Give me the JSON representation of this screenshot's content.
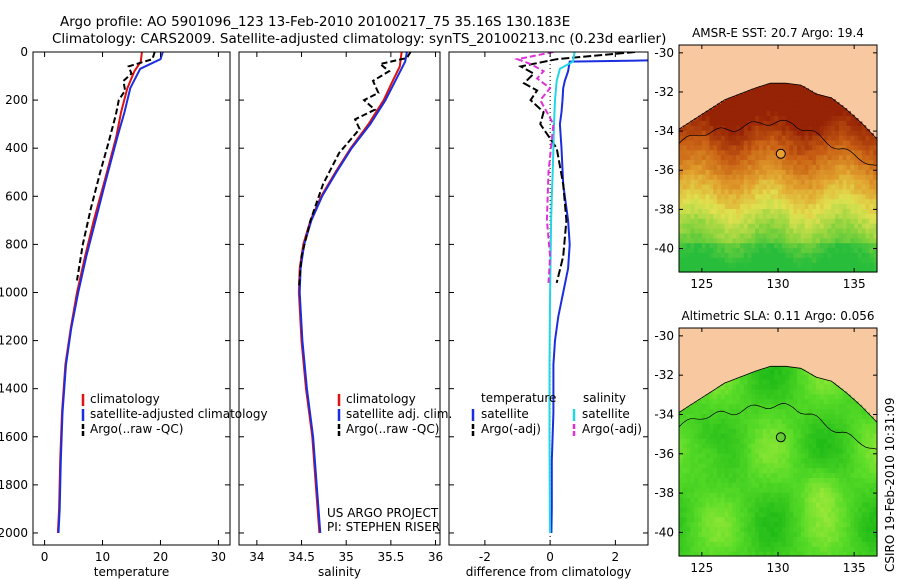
{
  "title_line1": "Argo profile: AO 5901096_123 13-Feb-2010 20100217_75 35.16S 130.183E",
  "title_line2": "Climatology: CARS2009. Satellite-adjusted climatology: synTS_20100213.nc (0.23d earlier)",
  "side_label": "CSIRO 19-Feb-2010 10:31:09",
  "colors": {
    "climatology": "#e01010",
    "satellite": "#1a2ee0",
    "argo": "#000000",
    "satellite_diff_sal": "#22d6e8",
    "argo_diff_sal": "#e030d8",
    "land": "#f8c8a0"
  },
  "chart_data": [
    {
      "id": "temperature",
      "type": "line",
      "xlabel": "temperature",
      "xlim": [
        -2,
        32
      ],
      "ylim": [
        0,
        2050
      ],
      "y_inverted": true,
      "xticks": [
        0,
        10,
        20,
        30
      ],
      "yticks": [
        0,
        200,
        400,
        600,
        800,
        1000,
        1200,
        1400,
        1600,
        1800,
        2000
      ],
      "legend": [
        "climatology",
        "satellite-adjusted climatology",
        "Argo(..raw -QC)"
      ],
      "series": [
        {
          "name": "climatology",
          "color": "climatology",
          "dash": "",
          "x": [
            16.8,
            16.6,
            15.5,
            14.3,
            13.2,
            12.4,
            11.3,
            10.2,
            8.5,
            7.0,
            5.6,
            4.5,
            3.6,
            3.0,
            2.7,
            2.5,
            2.3
          ],
          "y": [
            0,
            40,
            80,
            150,
            250,
            350,
            450,
            550,
            700,
            850,
            1000,
            1150,
            1300,
            1500,
            1700,
            1900,
            2000
          ]
        },
        {
          "name": "satellite-adjusted climatology",
          "color": "satellite",
          "dash": "",
          "x": [
            20.4,
            20.0,
            16.5,
            14.8,
            13.8,
            12.6,
            11.5,
            10.4,
            8.8,
            7.2,
            5.8,
            4.6,
            3.7,
            3.1,
            2.8,
            2.6,
            2.4
          ],
          "y": [
            0,
            30,
            70,
            150,
            250,
            350,
            450,
            550,
            700,
            850,
            1000,
            1150,
            1300,
            1500,
            1700,
            1900,
            2000
          ]
        },
        {
          "name": "Argo(..raw -QC)",
          "color": "argo",
          "dash": "6,3",
          "x": [
            19.0,
            18.6,
            14.5,
            15.0,
            13.6,
            13.9,
            12.8,
            12.3,
            11.0,
            9.6,
            8.0,
            6.6,
            5.6
          ],
          "y": [
            0,
            30,
            60,
            90,
            120,
            160,
            200,
            260,
            380,
            500,
            650,
            800,
            950
          ]
        }
      ]
    },
    {
      "id": "salinity",
      "type": "line",
      "xlabel": "salinity",
      "xlim": [
        33.8,
        36.05
      ],
      "ylim": [
        0,
        2050
      ],
      "y_inverted": true,
      "xticks": [
        34,
        34.5,
        35,
        35.5,
        36
      ],
      "legend": [
        "climatology",
        "satellite adj. clim.",
        "Argo(..raw -QC)"
      ],
      "annotation": [
        "US ARGO PROJECT",
        "PI: STEPHEN RISER"
      ],
      "series": [
        {
          "name": "climatology",
          "color": "climatology",
          "dash": "",
          "x": [
            35.62,
            35.6,
            35.52,
            35.42,
            35.25,
            35.05,
            34.88,
            34.72,
            34.6,
            34.52,
            34.48,
            34.47,
            34.5,
            34.55,
            34.62,
            34.66,
            34.7
          ],
          "y": [
            0,
            60,
            120,
            200,
            300,
            400,
            500,
            600,
            700,
            800,
            900,
            1000,
            1200,
            1400,
            1600,
            1800,
            2000
          ]
        },
        {
          "name": "satellite adj. clim.",
          "color": "satellite",
          "dash": "",
          "x": [
            35.68,
            35.66,
            35.55,
            35.44,
            35.27,
            35.06,
            34.89,
            34.73,
            34.61,
            34.53,
            34.49,
            34.48,
            34.51,
            34.56,
            34.63,
            34.67,
            34.71
          ],
          "y": [
            0,
            40,
            120,
            200,
            300,
            400,
            500,
            600,
            700,
            800,
            900,
            1000,
            1200,
            1400,
            1600,
            1800,
            2000
          ]
        },
        {
          "name": "Argo(..raw -QC)",
          "color": "argo",
          "dash": "6,3",
          "x": [
            35.72,
            35.68,
            35.38,
            35.48,
            35.3,
            35.36,
            35.2,
            35.32,
            35.1,
            35.15,
            34.92,
            34.74,
            34.6,
            34.5,
            34.47
          ],
          "y": [
            0,
            25,
            50,
            80,
            120,
            170,
            200,
            240,
            280,
            320,
            420,
            550,
            700,
            850,
            980
          ]
        }
      ]
    },
    {
      "id": "difference",
      "type": "line",
      "xlabel": "difference from climatology",
      "xlim": [
        -3.1,
        3.0
      ],
      "ylim": [
        0,
        2050
      ],
      "y_inverted": true,
      "xticks": [
        -2,
        0,
        2
      ],
      "legend_left_title": "temperature",
      "legend_right_title": "salinity",
      "legend_left": [
        "satellite",
        "Argo(-adj)"
      ],
      "legend_right": [
        "satellite",
        "Argo(-adj)"
      ],
      "series": [
        {
          "name": "temperature satellite",
          "color": "satellite",
          "dash": "",
          "x": [
            3.0,
            0.6,
            0.55,
            0.45,
            0.4,
            0.38,
            0.35,
            0.3,
            0.35,
            0.4,
            0.55,
            0.6,
            0.55,
            0.4,
            0.25,
            0.15,
            0.1,
            0.1,
            0.05,
            0.05,
            0.04
          ],
          "y": [
            35,
            40,
            80,
            120,
            150,
            200,
            250,
            300,
            400,
            550,
            700,
            800,
            900,
            1000,
            1100,
            1200,
            1300,
            1500,
            1700,
            1900,
            2000
          ]
        },
        {
          "name": "temperature Argo(-adj)",
          "color": "argo",
          "dash": "8,3",
          "x": [
            2.6,
            0.2,
            -0.9,
            -0.5,
            -0.8,
            -0.4,
            -0.6,
            -0.2,
            -0.3,
            0.2,
            0.4,
            0.5,
            0.4,
            0.2
          ],
          "y": [
            0,
            30,
            60,
            90,
            130,
            160,
            200,
            250,
            300,
            400,
            550,
            700,
            850,
            960
          ]
        },
        {
          "name": "salinity satellite",
          "color": "satellite_diff_sal",
          "dash": "",
          "x": [
            0.75,
            0.7,
            0.3,
            0.2,
            0.15,
            0.12,
            0.1,
            0.08,
            0.05,
            0.03,
            0.02,
            0.0,
            -0.02,
            -0.02,
            -0.01,
            0.0
          ],
          "y": [
            0,
            40,
            70,
            120,
            200,
            300,
            400,
            500,
            600,
            700,
            800,
            1000,
            1300,
            1600,
            1900,
            2000
          ]
        },
        {
          "name": "salinity Argo(-adj)",
          "color": "argo_diff_sal",
          "dash": "6,3",
          "x": [
            0.1,
            -1.0,
            -0.6,
            -0.2,
            -0.4,
            0.0,
            -0.3,
            0.1,
            -0.05,
            -0.1,
            0.0,
            -0.05
          ],
          "y": [
            0,
            30,
            50,
            80,
            110,
            150,
            200,
            300,
            500,
            700,
            850,
            960
          ]
        }
      ]
    },
    {
      "id": "sst-map",
      "type": "heatmap",
      "title": "AMSR-E SST: 20.7 Argo: 19.4",
      "xlim": [
        123.5,
        136.5
      ],
      "ylim": [
        -41.2,
        -29.6
      ],
      "xticks": [
        125,
        130,
        135
      ],
      "yticks": [
        -30,
        -32,
        -34,
        -36,
        -38,
        -40
      ],
      "float_position": {
        "lon": 130.183,
        "lat": -35.16
      }
    },
    {
      "id": "sla-map",
      "type": "heatmap",
      "title": "Altimetric SLA: 0.11 Argo: 0.056",
      "xlim": [
        123.5,
        136.5
      ],
      "ylim": [
        -41.2,
        -29.6
      ],
      "xticks": [
        125,
        130,
        135
      ],
      "yticks": [
        -30,
        -32,
        -34,
        -36,
        -38,
        -40
      ],
      "float_position": {
        "lon": 130.183,
        "lat": -35.16
      }
    }
  ]
}
